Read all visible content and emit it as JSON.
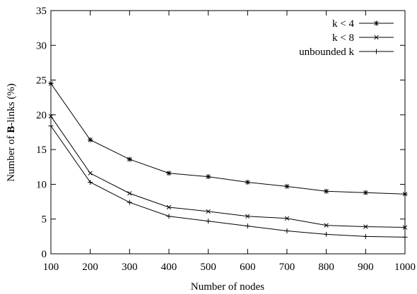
{
  "chart_data": {
    "type": "line",
    "title": "",
    "xlabel": "Number of nodes",
    "ylabel_prefix": "Number of ",
    "ylabel_bold": "B",
    "ylabel_suffix": "-links (%)",
    "x": [
      100,
      200,
      300,
      400,
      500,
      600,
      700,
      800,
      900,
      1000
    ],
    "xlim": [
      100,
      1000
    ],
    "ylim": [
      0,
      35
    ],
    "xticks": [
      "100",
      "200",
      "300",
      "400",
      "500",
      "600",
      "700",
      "800",
      "900",
      "1000"
    ],
    "yticks": [
      "0",
      "5",
      "10",
      "15",
      "20",
      "25",
      "30",
      "35"
    ],
    "grid": false,
    "legend_position": "top-right",
    "series": [
      {
        "name": "k < 4",
        "marker": "asterisk",
        "values": [
          24.5,
          16.4,
          13.6,
          11.6,
          11.1,
          10.3,
          9.7,
          9.0,
          8.8,
          8.6
        ]
      },
      {
        "name": "k < 8",
        "marker": "cross",
        "values": [
          19.8,
          11.6,
          8.7,
          6.7,
          6.1,
          5.4,
          5.1,
          4.1,
          3.9,
          3.8
        ]
      },
      {
        "name": "unbounded k",
        "marker": "plus",
        "values": [
          18.4,
          10.3,
          7.4,
          5.4,
          4.7,
          4.0,
          3.3,
          2.8,
          2.5,
          2.4
        ]
      }
    ]
  }
}
